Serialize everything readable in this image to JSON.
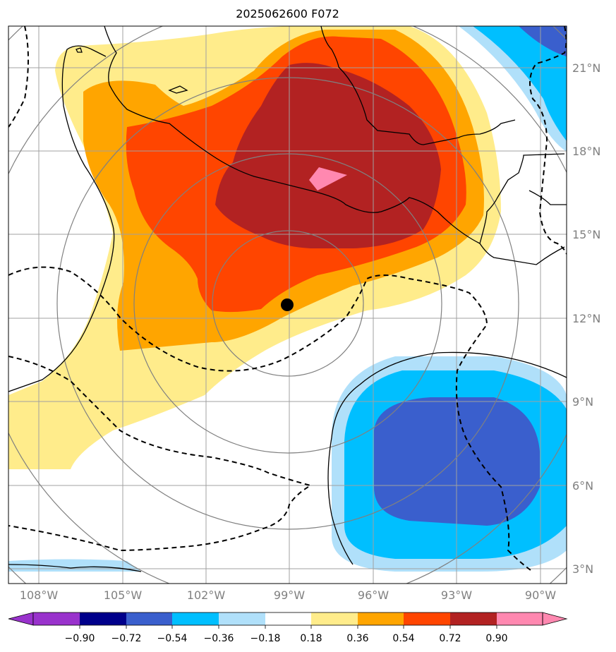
{
  "title": "2025062600 F072",
  "map": {
    "lon_range": [
      -109.0,
      -89.0
    ],
    "lat_range": [
      2.5,
      22.5
    ],
    "lon_ticks": [
      {
        "value": -108,
        "label": "108°W"
      },
      {
        "value": -105,
        "label": "105°W"
      },
      {
        "value": -102,
        "label": "102°W"
      },
      {
        "value": -99,
        "label": "99°W"
      },
      {
        "value": -96,
        "label": "96°W"
      },
      {
        "value": -93,
        "label": "93°W"
      },
      {
        "value": -90,
        "label": "90°W"
      }
    ],
    "lat_ticks": [
      {
        "value": 3,
        "label": "3°N"
      },
      {
        "value": 6,
        "label": "6°N"
      },
      {
        "value": 9,
        "label": "9°N"
      },
      {
        "value": 12,
        "label": "12°N"
      },
      {
        "value": 15,
        "label": "15°N"
      },
      {
        "value": 18,
        "label": "18°N"
      },
      {
        "value": 21,
        "label": "21°N"
      }
    ],
    "center_marker": {
      "lon": -99.0,
      "lat": 12.5
    },
    "gridline_color": "#a0a0a0",
    "coastline_color": "#000000",
    "range_ring_color": "#808080"
  },
  "colorbar": {
    "levels": [
      "−0.90",
      "−0.72",
      "−0.54",
      "−0.36",
      "−0.18",
      "0.18",
      "0.36",
      "0.54",
      "0.72",
      "0.90"
    ],
    "colors": [
      "#9932cc",
      "#00008b",
      "#3a5fcd",
      "#00bfff",
      "#b0e0fa",
      "#ffffff",
      "#ffec8b",
      "#ffa500",
      "#ff4500",
      "#b22222",
      "#ff88b0"
    ]
  }
}
